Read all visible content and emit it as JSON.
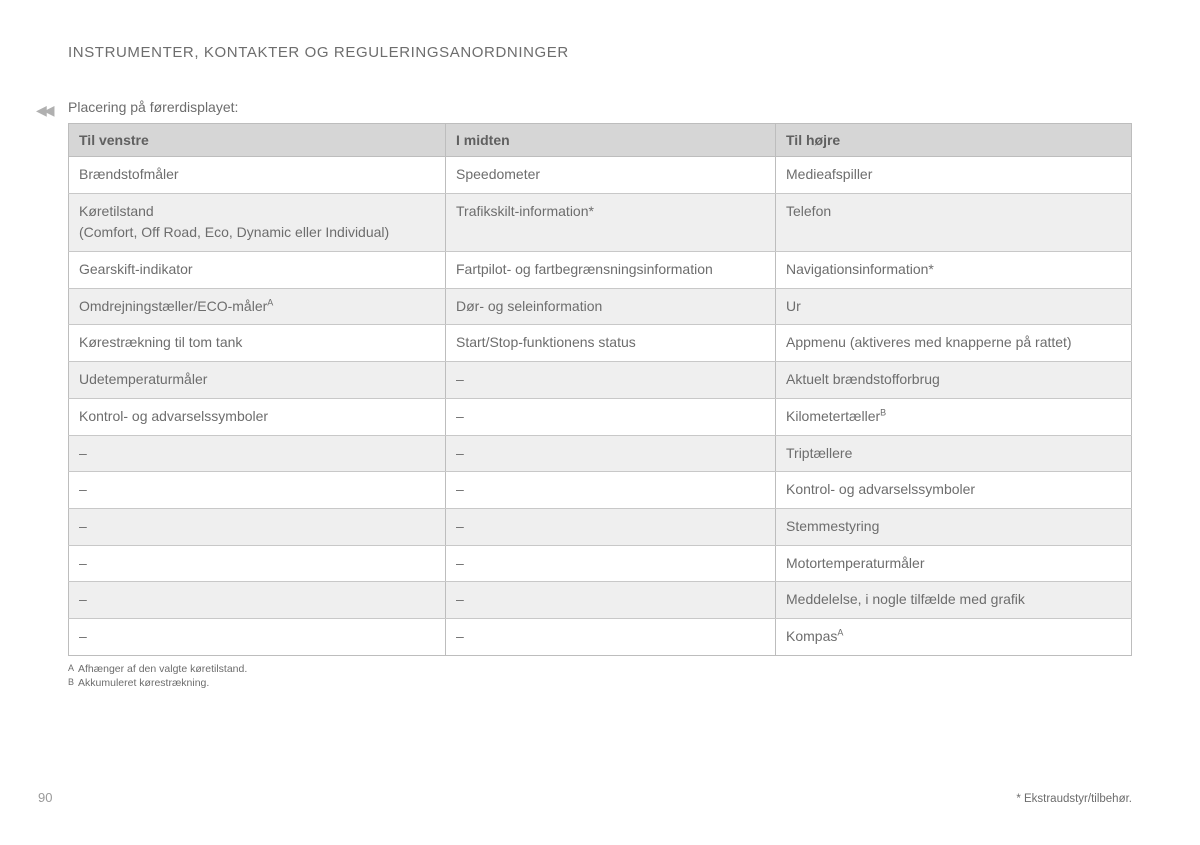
{
  "heading": "INSTRUMENTER, KONTAKTER OG REGULERINGSANORDNINGER",
  "intro": "Placering på førerdisplayet:",
  "table": {
    "columns": [
      "Til venstre",
      "I midten",
      "Til højre"
    ],
    "rows": [
      {
        "striped": false,
        "cells": [
          {
            "text": "Brændstofmåler"
          },
          {
            "text": "Speedometer"
          },
          {
            "text": "Medieafspiller"
          }
        ]
      },
      {
        "striped": true,
        "cells": [
          {
            "text": "Køretilstand\n(Comfort, Off Road, Eco, Dynamic eller Individual)"
          },
          {
            "text": "Trafikskilt-information*"
          },
          {
            "text": "Telefon"
          }
        ]
      },
      {
        "striped": false,
        "cells": [
          {
            "text": "Gearskift-indikator"
          },
          {
            "text": "Fartpilot- og fartbegrænsningsinformation"
          },
          {
            "text": "Navigationsinformation*"
          }
        ]
      },
      {
        "striped": true,
        "cells": [
          {
            "text": "Omdrejningstæller/ECO-måler",
            "sup": "A"
          },
          {
            "text": "Dør- og seleinformation"
          },
          {
            "text": "Ur"
          }
        ]
      },
      {
        "striped": false,
        "cells": [
          {
            "text": "Kørestrækning til tom tank"
          },
          {
            "text": "Start/Stop-funktionens status"
          },
          {
            "text": "Appmenu (aktiveres med knapperne på rattet)"
          }
        ]
      },
      {
        "striped": true,
        "cells": [
          {
            "text": "Udetemperaturmåler"
          },
          {
            "text": "–"
          },
          {
            "text": "Aktuelt brændstofforbrug"
          }
        ]
      },
      {
        "striped": false,
        "cells": [
          {
            "text": "Kontrol- og advarselssymboler"
          },
          {
            "text": "–"
          },
          {
            "text": "Kilometertæller",
            "sup": "B"
          }
        ]
      },
      {
        "striped": true,
        "cells": [
          {
            "text": "–"
          },
          {
            "text": "–"
          },
          {
            "text": "Triptællere"
          }
        ]
      },
      {
        "striped": false,
        "cells": [
          {
            "text": "–"
          },
          {
            "text": "–"
          },
          {
            "text": "Kontrol- og advarselssymboler"
          }
        ]
      },
      {
        "striped": true,
        "cells": [
          {
            "text": "–"
          },
          {
            "text": "–"
          },
          {
            "text": "Stemmestyring"
          }
        ]
      },
      {
        "striped": false,
        "cells": [
          {
            "text": "–"
          },
          {
            "text": "–"
          },
          {
            "text": "Motortemperaturmåler"
          }
        ]
      },
      {
        "striped": true,
        "cells": [
          {
            "text": "–"
          },
          {
            "text": "–"
          },
          {
            "text": "Meddelelse, i nogle tilfælde med grafik"
          }
        ]
      },
      {
        "striped": false,
        "cells": [
          {
            "text": "–"
          },
          {
            "text": "–"
          },
          {
            "text": "Kompas",
            "sup": "A"
          }
        ]
      }
    ]
  },
  "footnotes": [
    {
      "mark": "A",
      "text": "Afhænger af den valgte køretilstand."
    },
    {
      "mark": "B",
      "text": "Akkumuleret kørestrækning."
    }
  ],
  "page_number": "90",
  "footer_right": "* Ekstraudstyr/tilbehør.",
  "colors": {
    "text": "#6d6d6d",
    "header_bg": "#d6d6d6",
    "stripe_bg": "#efefef",
    "border": "#bdbdbd",
    "row_border": "#c8c8c8",
    "page_bg": "#ffffff",
    "arrow": "#b0b0b0"
  }
}
